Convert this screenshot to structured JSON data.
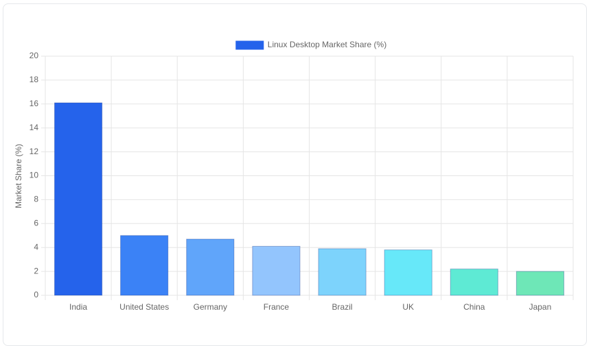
{
  "chart_data": {
    "type": "bar",
    "categories": [
      "India",
      "United States",
      "Germany",
      "France",
      "Brazil",
      "UK",
      "China",
      "Japan"
    ],
    "series": [
      {
        "name": "Linux Desktop Market Share (%)",
        "color": "#2563eb",
        "colors": [
          "#2563eb",
          "#3b82f6",
          "#60a5fa",
          "#93c5fd",
          "#7dd3fc",
          "#67e8f9",
          "#5eead4",
          "#6ee7b7"
        ],
        "values": [
          16.1,
          5.0,
          4.7,
          4.1,
          3.9,
          3.8,
          2.2,
          2.0
        ]
      }
    ],
    "y_label": "Market Share (%)",
    "ylim": [
      0,
      20
    ],
    "yticks": [
      0,
      2,
      4,
      6,
      8,
      10,
      12,
      14,
      16,
      18,
      20
    ],
    "grid": true,
    "legend": "top"
  }
}
